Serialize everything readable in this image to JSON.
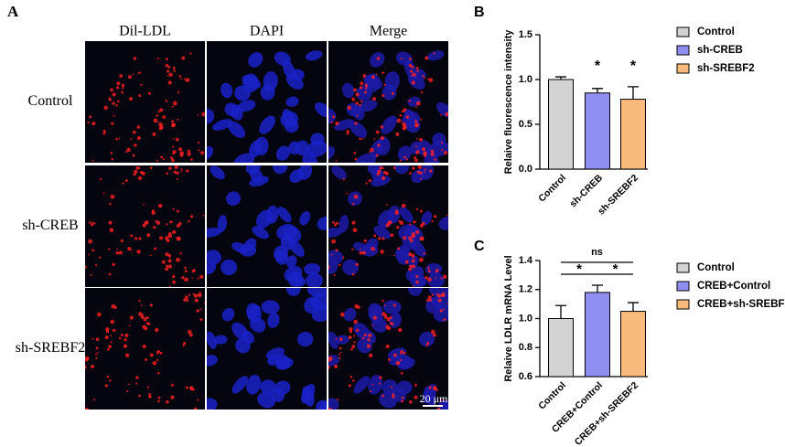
{
  "panel_a": {
    "label": "A",
    "columns": [
      "Dil-LDL",
      "DAPI",
      "Merge"
    ],
    "rows": [
      "Control",
      "sh-CREB",
      "sh-SREBF2"
    ],
    "scale_bar": "20 μm"
  },
  "chart_data": [
    {
      "type": "bar",
      "panel": "B",
      "ylabel": "Relaive fluorescence intensity",
      "categories": [
        "Control",
        "sh-CREB",
        "sh-SREBF2"
      ],
      "values": [
        1.0,
        0.85,
        0.78
      ],
      "errors": [
        0.03,
        0.05,
        0.14
      ],
      "colors": [
        "#d3d3d3",
        "#8f8ff2",
        "#f9bb7d"
      ],
      "ylim": [
        0,
        1.5
      ],
      "yticks": [
        {
          "value": 0,
          "label": "0.0"
        },
        0.5,
        {
          "value": 1,
          "label": "1.0"
        },
        1.5
      ],
      "legend": true,
      "annotations": [
        {
          "text": "*",
          "category": "sh-CREB"
        },
        {
          "text": "*",
          "category": "sh-SREBF2"
        }
      ]
    },
    {
      "type": "bar",
      "panel": "C",
      "ylabel": "Relaive LDLR mRNA Level",
      "categories": [
        "Control",
        "CREB+Control",
        "CREB+sh-SREBF2"
      ],
      "values": [
        1.0,
        1.18,
        1.05
      ],
      "errors": [
        0.09,
        0.05,
        0.06
      ],
      "colors": [
        "#d3d3d3",
        "#8f8ff2",
        "#f9bb7d"
      ],
      "ylim": [
        0.6,
        1.4
      ],
      "yticks": [
        0.6,
        0.8,
        {
          "value": 1,
          "label": "1.0"
        },
        1.2,
        1.4
      ],
      "legend": true,
      "annotations": [
        {
          "text": "ns",
          "from": "Control",
          "to": "CREB+sh-SREBF2"
        },
        {
          "text": "*",
          "from": "Control",
          "to": "CREB+Control"
        },
        {
          "text": "*",
          "from": "CREB+Control",
          "to": "CREB+sh-SREBF2"
        }
      ]
    }
  ]
}
